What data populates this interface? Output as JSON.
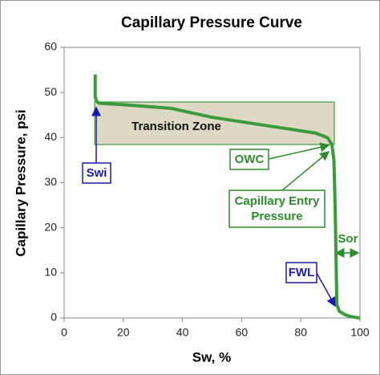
{
  "chart_data": {
    "type": "line",
    "title": "Capillary Pressure Curve",
    "x_label": "Sw, %",
    "y_label": "Capillary Pressure, psi",
    "x": [
      10.5,
      10.5,
      11,
      12,
      20,
      36,
      50,
      70,
      85,
      89,
      90.5,
      91.2,
      91.6,
      92,
      92.2,
      93,
      95,
      97,
      100
    ],
    "series": [
      {
        "name": "Capillary Pressure",
        "color": "#3c9a3c",
        "values": [
          54,
          49,
          48,
          47.6,
          47.3,
          46.5,
          44.5,
          42.5,
          41,
          40,
          38.5,
          35,
          25,
          10,
          3,
          1.5,
          0.7,
          0.3,
          0
        ]
      }
    ],
    "xlim": [
      0,
      100
    ],
    "ylim": [
      0,
      60
    ],
    "xticks": [
      0,
      20,
      40,
      60,
      80,
      100
    ],
    "yticks": [
      0,
      10,
      20,
      30,
      40,
      50,
      60
    ],
    "annotations": {
      "transition_zone": "Transition Zone",
      "swi": "Swi",
      "owc": "OWC",
      "capillary_entry_pressure": [
        "Capillary Entry",
        "Pressure"
      ],
      "sor": "Sor",
      "fwl": "FWL"
    }
  }
}
